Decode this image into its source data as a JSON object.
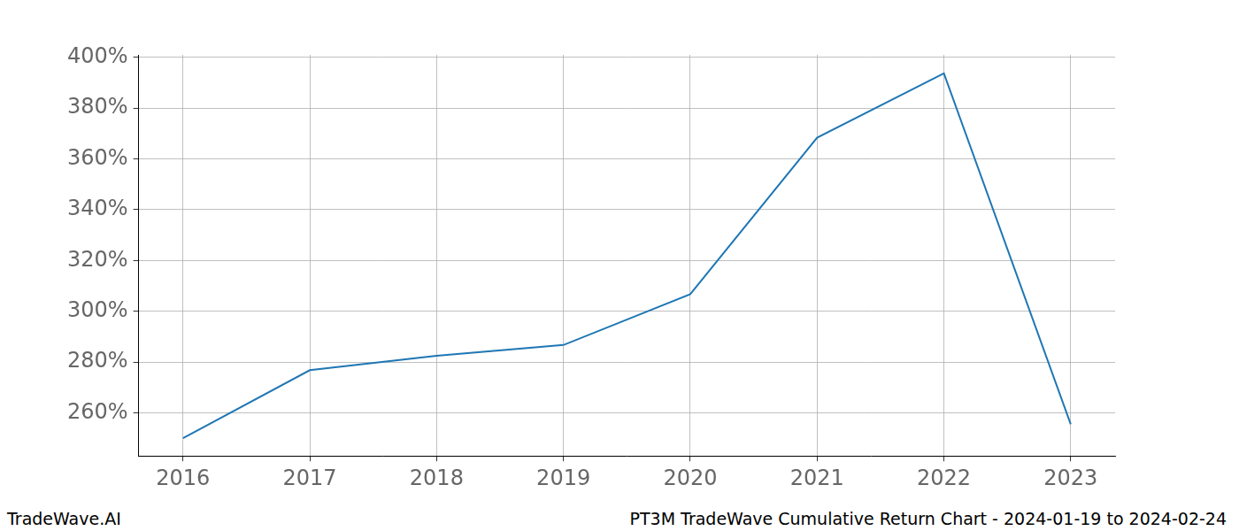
{
  "chart_data": {
    "type": "line",
    "title": "PT3M TradeWave Cumulative Return Chart - 2024-01-19 to 2024-02-24",
    "annotations": [
      "TradeWave.AI"
    ],
    "x": [
      2016,
      2017,
      2018,
      2019,
      2020,
      2021,
      2022,
      2023
    ],
    "values": [
      250.0,
      276.8,
      282.5,
      286.7,
      306.7,
      368.4,
      393.7,
      255.5
    ],
    "color": "#1f77b4",
    "xlim": [
      2015.65,
      2023.35
    ],
    "xticks": [
      2016,
      2017,
      2018,
      2019,
      2020,
      2021,
      2022,
      2023
    ],
    "ylim": [
      243,
      401
    ],
    "yticks": [
      {
        "value": 260,
        "label": "260%"
      },
      {
        "value": 280,
        "label": "280%"
      },
      {
        "value": 300,
        "label": "300%"
      },
      {
        "value": 320,
        "label": "320%"
      },
      {
        "value": 340,
        "label": "340%"
      },
      {
        "value": 360,
        "label": "360%"
      },
      {
        "value": 380,
        "label": "380%"
      },
      {
        "value": 400,
        "label": "400%"
      }
    ],
    "grid": true
  }
}
